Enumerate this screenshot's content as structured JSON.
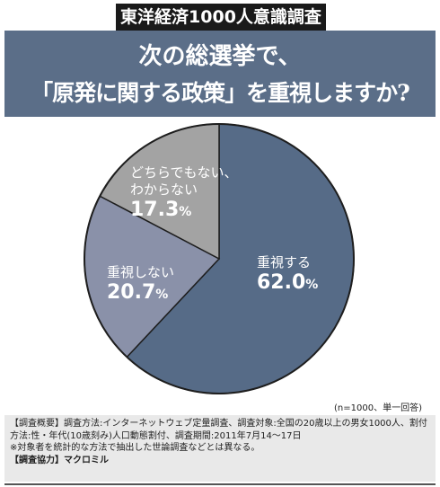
{
  "header": {
    "series_badge": "東洋経済1000人意識調査",
    "question_line1": "次の総選挙で、",
    "question_line2": "「原発に関する政策」を重視しますか?"
  },
  "chart_data": {
    "type": "pie",
    "unit": "%",
    "slices": [
      {
        "label": "重視する",
        "value": 62.0,
        "value_text": "62.0",
        "color": "#566b87"
      },
      {
        "label": "重視しない",
        "value": 20.7,
        "value_text": "20.7",
        "color": "#8a91a9"
      },
      {
        "label": "どちらでもない、わからない",
        "value": 17.3,
        "value_text": "17.3",
        "color": "#a3a3a3"
      }
    ],
    "display_labels": [
      {
        "line1": "重視する",
        "line2": ""
      },
      {
        "line1": "重視しない",
        "line2": ""
      },
      {
        "line1": "どちらでもない、",
        "line2": "わからない"
      }
    ],
    "note": "(n=1000、単一回答)"
  },
  "survey_info": {
    "line1": "【調査概要】調査方法:インターネットウェブ定量調査、調査対象:全国の20歳以上の男女1000人、割付",
    "line2": "方法:性・年代(10歳刻み)人口動態割付、調査期間:2011年7月14〜17日",
    "line3": "※対象者を統計的な方法で抽出した世論調査などとは異なる。",
    "line4": "【調査協力】マクロミル"
  }
}
